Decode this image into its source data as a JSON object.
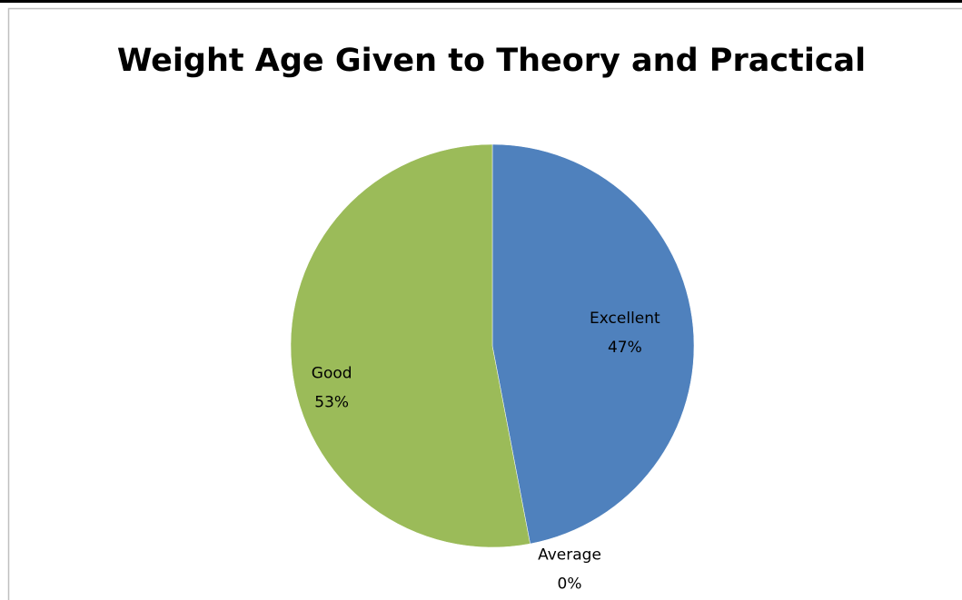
{
  "chart_data": {
    "type": "pie",
    "title": "Weight Age  Given to Theory and Practical",
    "categories": [
      "Excellent",
      "Average",
      "Good"
    ],
    "values": [
      47,
      0,
      53
    ],
    "value_labels": [
      "47%",
      "0%",
      "53%"
    ],
    "colors": [
      "#4f81bd",
      "#c0504d",
      "#9bbb59"
    ]
  }
}
